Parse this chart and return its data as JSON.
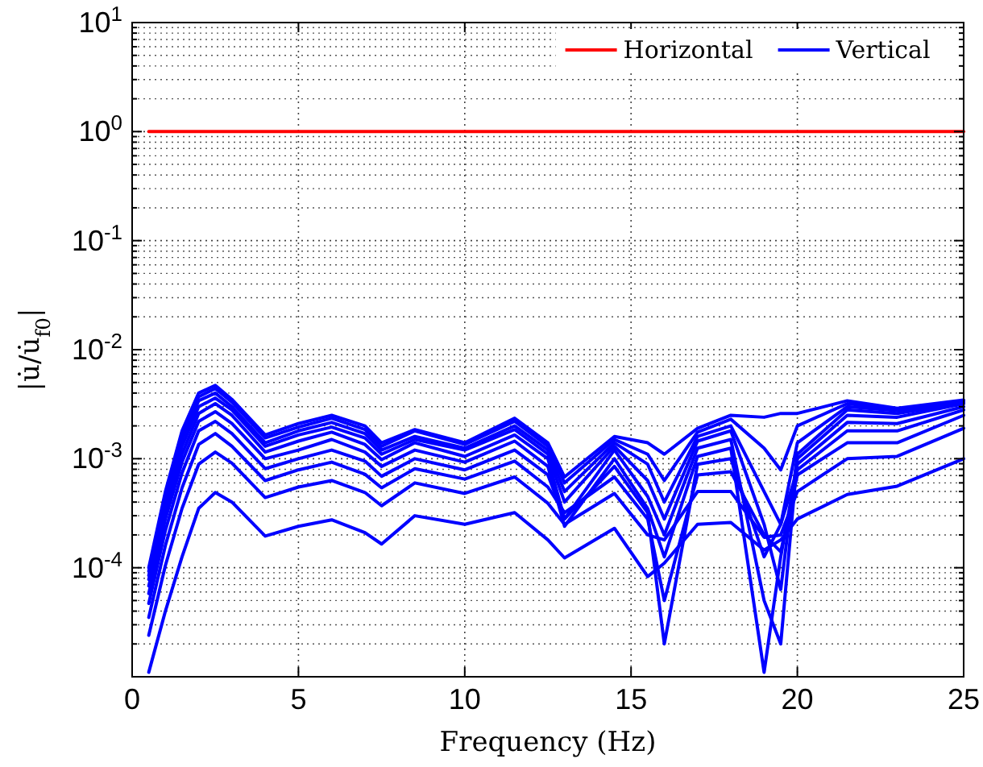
{
  "chart_data": {
    "type": "line",
    "xlabel": "Frequency (Hz)",
    "ylabel": "|u̇/u̇$_{f0}$|",
    "log": "y",
    "grid": true,
    "legend": "top right",
    "xlim": [
      0,
      25
    ],
    "xticks": [
      0,
      5,
      10,
      15,
      20,
      25
    ],
    "ylim": [
      1e-05,
      10
    ],
    "yticks": [
      {
        "value": 1e-05,
        "label": null
      },
      {
        "value": 0.0001,
        "label": "10$^{-4}$"
      },
      {
        "value": 0.001,
        "label": "10$^{-3}$"
      },
      {
        "value": 0.01,
        "label": "10$^{-2}$"
      },
      {
        "value": 0.1,
        "label": "10$^{-1}$"
      },
      {
        "value": 1,
        "label": "10$^{0}$"
      },
      {
        "value": 10,
        "label": "10$^{1}$"
      }
    ],
    "x": [
      0.5,
      1,
      1.5,
      2,
      2.5,
      3,
      4,
      5,
      6,
      7,
      7.5,
      8.5,
      10,
      11.5,
      12.5,
      13,
      14.5,
      15.5,
      16,
      17,
      18,
      19,
      19.5,
      20,
      21.5,
      23,
      25
    ],
    "series": [
      {
        "name": "Horizontal",
        "color": "#ff0000",
        "x": [
          0.5,
          25
        ],
        "values": [
          1,
          1
        ]
      },
      {
        "name": "Vertical",
        "color": "#0000ff",
        "values": [
          1.1e-05,
          4e-05,
          0.000126,
          0.00035,
          0.00049,
          0.0004,
          0.000195,
          0.00024,
          0.000275,
          0.00021,
          0.000165,
          0.0003,
          0.00025,
          0.00032,
          0.00018,
          0.000123,
          0.00023,
          8.3e-05,
          0.00011,
          0.00025,
          0.00026,
          0.000145,
          0.00018,
          0.00028,
          0.00047,
          0.00056,
          0.001
        ]
      },
      {
        "color": "#0000ff",
        "values": [
          2.4e-05,
          0.000105,
          0.00035,
          0.00089,
          0.00115,
          0.00091,
          0.00044,
          0.00055,
          0.00063,
          0.00049,
          0.00037,
          0.0006,
          0.00048,
          0.00068,
          0.00039,
          0.00025,
          0.00048,
          0.0002,
          0.00018,
          0.0005,
          0.0005,
          0.00019,
          0.0002,
          0.0005,
          0.001,
          0.00105,
          0.0019
        ]
      },
      {
        "color": "#0000ff",
        "values": [
          3.5e-05,
          0.00016,
          0.00054,
          0.00135,
          0.0017,
          0.0013,
          0.00063,
          0.00079,
          0.00093,
          0.00072,
          0.00054,
          0.00081,
          0.00065,
          0.00095,
          0.00055,
          0.00032,
          0.00068,
          0.00028,
          5e-05,
          0.00071,
          0.00076,
          0.0002,
          0.00014,
          0.00071,
          0.0014,
          0.0014,
          0.0025
        ]
      },
      {
        "color": "#0000ff",
        "values": [
          4.7e-05,
          0.00022,
          0.00074,
          0.0018,
          0.0022,
          0.0017,
          0.00081,
          0.001,
          0.0012,
          0.00095,
          0.00069,
          0.001,
          0.00079,
          0.0012,
          0.00071,
          0.00028,
          0.00085,
          0.00032,
          2e-05,
          0.00089,
          0.001,
          0.000126,
          0.00025,
          0.00079,
          0.0018,
          0.0018,
          0.0028
        ]
      },
      {
        "color": "#0000ff",
        "values": [
          5.8e-05,
          0.00028,
          0.00093,
          0.0022,
          0.0027,
          0.0021,
          0.001,
          0.0012,
          0.0015,
          0.00115,
          0.00085,
          0.0012,
          0.00093,
          0.00145,
          0.00085,
          0.00024,
          0.001,
          0.00035,
          0.000126,
          0.00105,
          0.00125,
          1.1e-05,
          0.000126,
          0.00089,
          0.00215,
          0.0021,
          0.003
        ]
      },
      {
        "color": "#0000ff",
        "values": [
          6.8e-05,
          0.00032,
          0.0011,
          0.0026,
          0.0032,
          0.0025,
          0.00115,
          0.00145,
          0.00175,
          0.00135,
          0.00098,
          0.0014,
          0.00105,
          0.00165,
          0.001,
          0.00028,
          0.0012,
          0.00045,
          0.0002,
          0.00125,
          0.0015,
          5e-05,
          2e-05,
          0.001,
          0.0025,
          0.0024,
          0.0032
        ]
      },
      {
        "color": "#0000ff",
        "values": [
          7.8e-05,
          0.00038,
          0.0013,
          0.003,
          0.0036,
          0.0028,
          0.0013,
          0.00165,
          0.00195,
          0.00155,
          0.0011,
          0.0015,
          0.0012,
          0.00185,
          0.0011,
          0.0004,
          0.0013,
          0.00063,
          0.00028,
          0.00145,
          0.0018,
          0.00025,
          6.3e-05,
          0.0011,
          0.0028,
          0.0026,
          0.00325
        ]
      },
      {
        "color": "#0000ff",
        "values": [
          8.5e-05,
          0.00042,
          0.0015,
          0.0034,
          0.004,
          0.003,
          0.0014,
          0.0018,
          0.00215,
          0.0017,
          0.0012,
          0.0016,
          0.00125,
          0.002,
          0.0012,
          0.0005,
          0.0014,
          0.00089,
          0.0004,
          0.0016,
          0.002,
          0.0005,
          0.00025,
          0.0014,
          0.003,
          0.00275,
          0.0033
        ]
      },
      {
        "color": "#0000ff",
        "values": [
          9.3e-05,
          0.00047,
          0.0017,
          0.0037,
          0.0044,
          0.0033,
          0.00155,
          0.00195,
          0.00235,
          0.00185,
          0.0013,
          0.0018,
          0.00135,
          0.0022,
          0.0013,
          0.0006,
          0.0015,
          0.0011,
          0.00063,
          0.00175,
          0.0023,
          0.00125,
          0.00079,
          0.002,
          0.0032,
          0.00285,
          0.0034
        ]
      },
      {
        "color": "#0000ff",
        "values": [
          0.0001,
          0.0005,
          0.0018,
          0.004,
          0.0047,
          0.0035,
          0.00165,
          0.0021,
          0.0025,
          0.002,
          0.0014,
          0.00185,
          0.0014,
          0.00235,
          0.0014,
          0.00068,
          0.0016,
          0.0014,
          0.0011,
          0.0019,
          0.0025,
          0.0024,
          0.0026,
          0.0026,
          0.0034,
          0.0029,
          0.00345
        ]
      }
    ]
  }
}
